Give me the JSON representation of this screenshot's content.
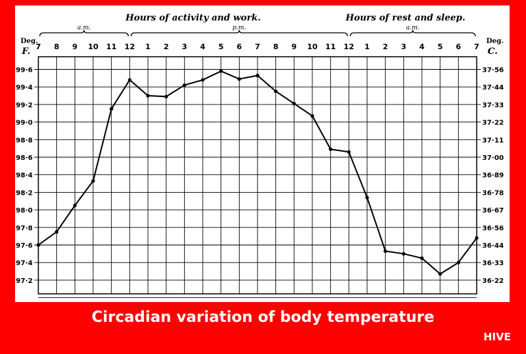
{
  "caption": "Circadian variation of body temperature",
  "brand": "HIVE",
  "colors": {
    "frame": "#ff0000",
    "panel": "#ffffff",
    "ink": "#000000"
  },
  "chart_data": {
    "type": "line",
    "header_left": "Hours of activity and work.",
    "header_right": "Hours of rest and sleep.",
    "periods": [
      {
        "label": "a.m.",
        "from": 7,
        "to": 12
      },
      {
        "label": "p.m.",
        "from": 12,
        "to": 24
      },
      {
        "label": "a.m.",
        "from": 24,
        "to": 31
      }
    ],
    "x_ticks": [
      "7",
      "8",
      "9",
      "10",
      "11",
      "12",
      "1",
      "2",
      "3",
      "4",
      "5",
      "6",
      "7",
      "8",
      "9",
      "10",
      "11",
      "12",
      "1",
      "2",
      "3",
      "4",
      "5",
      "6",
      "7"
    ],
    "x_range": [
      7,
      31
    ],
    "left_axis": {
      "unit_top": "Deg.",
      "unit_bottom": "F.",
      "ticks": [
        "99·6",
        "99·4",
        "99·2",
        "99·0",
        "98·8",
        "98·6",
        "98·4",
        "98·2",
        "98·0",
        "97·8",
        "97·6",
        "97·4",
        "97·2"
      ]
    },
    "right_axis": {
      "unit_top": "Deg.",
      "unit_bottom": "C.",
      "ticks": [
        "37·56",
        "37·44",
        "37·33",
        "37·22",
        "37·11",
        "37·00",
        "36·89",
        "36·78",
        "36·67",
        "36·56",
        "36·44",
        "36·33",
        "36·22"
      ]
    },
    "ylim": [
      97.0,
      99.7
    ],
    "grid": true,
    "series": [
      {
        "x": [
          7,
          8,
          9,
          10,
          11,
          12,
          13,
          14,
          15,
          16,
          17,
          18,
          19,
          20,
          21,
          22,
          23,
          24,
          25,
          26,
          27,
          28,
          29,
          30,
          31
        ],
        "y": [
          97.6,
          97.75,
          98.05,
          98.33,
          99.15,
          99.48,
          99.3,
          99.29,
          99.42,
          99.48,
          99.58,
          99.49,
          99.53,
          99.35,
          99.21,
          99.07,
          98.69,
          98.66,
          98.14,
          97.53,
          97.5,
          97.45,
          97.27,
          97.4,
          97.68
        ]
      }
    ]
  }
}
